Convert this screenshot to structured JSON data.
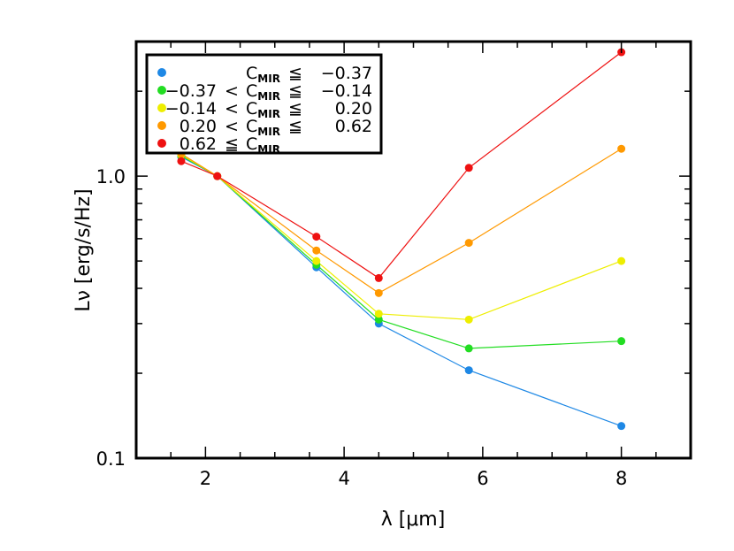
{
  "chart_data": {
    "type": "line",
    "x": [
      1.65,
      2.17,
      3.6,
      4.5,
      5.8,
      8.0
    ],
    "xlabel": "λ [μm]",
    "ylabel": "Lν [erg/s/Hz]",
    "xlim": [
      1.0,
      9.0
    ],
    "ylim": [
      0.1,
      3.0
    ],
    "yscale": "log",
    "xticks": [
      2,
      4,
      6,
      8
    ],
    "xtick_labels": [
      "2",
      "4",
      "6",
      "8"
    ],
    "yticks": [
      0.1,
      1.0
    ],
    "ytick_labels": [
      "0.1",
      "1.0"
    ],
    "legend_position": "top-left",
    "series": [
      {
        "color": "#1e88e5",
        "values": [
          1.17,
          1.0,
          0.475,
          0.3,
          0.205,
          0.13
        ]
      },
      {
        "color": "#22dd22",
        "values": [
          1.18,
          1.0,
          0.485,
          0.31,
          0.245,
          0.26
        ]
      },
      {
        "color": "#eeee00",
        "values": [
          1.19,
          1.0,
          0.5,
          0.325,
          0.31,
          0.5
        ]
      },
      {
        "color": "#ff9900",
        "values": [
          1.2,
          1.0,
          0.545,
          0.385,
          0.58,
          1.25
        ]
      },
      {
        "color": "#ee1111",
        "values": [
          1.13,
          1.0,
          0.61,
          0.435,
          1.07,
          2.75
        ]
      }
    ],
    "legend": [
      {
        "left": "",
        "op1": "",
        "sym": "C",
        "sub": "MIR",
        "op2": "≦",
        "right": "−0.37"
      },
      {
        "left": "−0.37",
        "op1": "<",
        "sym": "C",
        "sub": "MIR",
        "op2": "≦",
        "right": "−0.14"
      },
      {
        "left": "−0.14",
        "op1": "<",
        "sym": "C",
        "sub": "MIR",
        "op2": "≦",
        "right": "0.20"
      },
      {
        "left": "0.20",
        "op1": "<",
        "sym": "C",
        "sub": "MIR",
        "op2": "≦",
        "right": "0.62"
      },
      {
        "left": "0.62",
        "op1": "≦",
        "sym": "C",
        "sub": "MIR",
        "op2": "",
        "right": ""
      }
    ]
  }
}
